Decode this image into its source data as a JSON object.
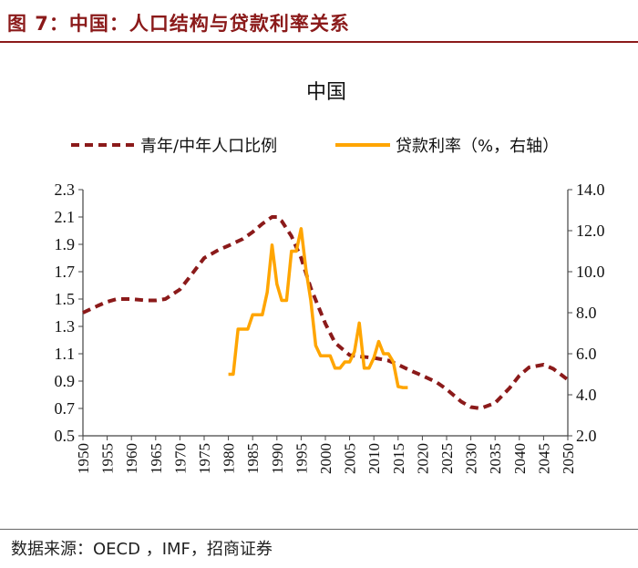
{
  "header": {
    "title": "图 7：中国：人口结构与贷款利率关系"
  },
  "footer": {
    "source": "数据来源：OECD ，IMF，招商证券"
  },
  "colors": {
    "ratio": "#8b1a1a",
    "rate": "#ffa500",
    "accent": "#8b1a1a"
  },
  "chart_data": {
    "type": "line",
    "title": "中国",
    "legend": [
      "青年/中年人口比例",
      "贷款利率（%，右轴）"
    ],
    "legend_placement": "top",
    "x_ticks": [
      1950,
      1955,
      1960,
      1965,
      1970,
      1975,
      1980,
      1985,
      1990,
      1995,
      2000,
      2005,
      2010,
      2015,
      2020,
      2025,
      2030,
      2035,
      2040,
      2045,
      2050
    ],
    "xlim": [
      1950,
      2050
    ],
    "y_left": {
      "ylim": [
        0.5,
        2.3
      ],
      "ticks": [
        "0.5",
        "0.7",
        "0.9",
        "1.1",
        "1.3",
        "1.5",
        "1.7",
        "1.9",
        "2.1",
        "2.3"
      ]
    },
    "y_right": {
      "ylim": [
        2.0,
        14.0
      ],
      "ticks": [
        "2.0",
        "4.0",
        "6.0",
        "8.0",
        "10.0",
        "12.0",
        "14.0"
      ]
    },
    "series": [
      {
        "name": "青年/中年人口比例",
        "axis": "left",
        "style": "dashed",
        "x": [
          1950,
          1953,
          1955,
          1957,
          1960,
          1963,
          1965,
          1967,
          1970,
          1972,
          1975,
          1978,
          1980,
          1983,
          1985,
          1987,
          1989,
          1990,
          1991,
          1993,
          1995,
          1997,
          2000,
          2002,
          2005,
          2007,
          2010,
          2013,
          2015,
          2018,
          2020,
          2023,
          2025,
          2028,
          2030,
          2032,
          2035,
          2038,
          2040,
          2042,
          2045,
          2047,
          2050
        ],
        "y": [
          1.4,
          1.45,
          1.48,
          1.5,
          1.5,
          1.49,
          1.49,
          1.5,
          1.57,
          1.66,
          1.8,
          1.86,
          1.89,
          1.94,
          1.99,
          2.05,
          2.1,
          2.1,
          2.07,
          1.96,
          1.8,
          1.58,
          1.32,
          1.18,
          1.09,
          1.08,
          1.07,
          1.05,
          1.02,
          0.97,
          0.94,
          0.89,
          0.84,
          0.75,
          0.71,
          0.7,
          0.74,
          0.85,
          0.94,
          1.0,
          1.02,
          0.99,
          0.91
        ]
      },
      {
        "name": "贷款利率（%，右轴）",
        "axis": "right",
        "style": "solid",
        "x": [
          1980,
          1981,
          1982,
          1983,
          1984,
          1985,
          1986,
          1987,
          1988,
          1989,
          1990,
          1991,
          1992,
          1993,
          1994,
          1995,
          1996,
          1997,
          1998,
          1999,
          2000,
          2001,
          2002,
          2003,
          2004,
          2005,
          2006,
          2007,
          2008,
          2009,
          2010,
          2011,
          2012,
          2013,
          2014,
          2015,
          2016,
          2017
        ],
        "y": [
          5.0,
          5.0,
          7.2,
          7.2,
          7.2,
          7.9,
          7.9,
          7.9,
          9.0,
          11.3,
          9.4,
          8.6,
          8.6,
          11.0,
          11.0,
          12.1,
          10.1,
          8.6,
          6.4,
          5.9,
          5.9,
          5.9,
          5.3,
          5.3,
          5.6,
          5.6,
          6.1,
          7.5,
          5.3,
          5.3,
          5.8,
          6.6,
          6.0,
          6.0,
          5.6,
          4.4,
          4.35,
          4.35
        ]
      }
    ]
  }
}
